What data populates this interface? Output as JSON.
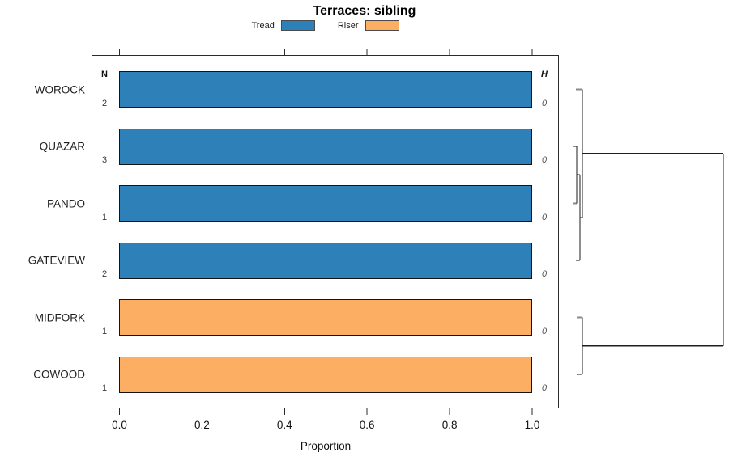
{
  "title": "Terraces: sibling",
  "legend": {
    "items": [
      {
        "label": "Tread",
        "color": "#2E80B8"
      },
      {
        "label": "Riser",
        "color": "#FCAE62"
      }
    ]
  },
  "table": {
    "n_header": "N",
    "h_header": "H"
  },
  "x_axis": {
    "label": "Proportion",
    "tick_labels": [
      "0.0",
      "0.2",
      "0.4",
      "0.6",
      "0.8",
      "1.0"
    ],
    "tick_values": [
      0,
      0.2,
      0.4,
      0.6,
      0.8,
      1.0
    ],
    "range": [
      0,
      1
    ]
  },
  "chart_data": {
    "type": "bar",
    "orientation": "horizontal",
    "title": "Terraces: sibling",
    "xlabel": "Proportion",
    "xlim": [
      0,
      1.05
    ],
    "grid": false,
    "legend_position": "top",
    "categories": [
      "WOROCK",
      "QUAZAR",
      "PANDO",
      "GATEVIEW",
      "MIDFORK",
      "COWOOD"
    ],
    "series": [
      {
        "name": "Tread",
        "color": "#2E80B8",
        "values": [
          1.0,
          1.0,
          1.0,
          1.0,
          0,
          0
        ]
      },
      {
        "name": "Riser",
        "color": "#FCAE62",
        "values": [
          0,
          0,
          0,
          0,
          1.0,
          1.0
        ]
      }
    ],
    "rows": [
      {
        "category": "WOROCK",
        "n": "2",
        "segment": "Tread",
        "proportion": 1.0,
        "h": "0"
      },
      {
        "category": "QUAZAR",
        "n": "3",
        "segment": "Tread",
        "proportion": 1.0,
        "h": "0"
      },
      {
        "category": "PANDO",
        "n": "1",
        "segment": "Tread",
        "proportion": 1.0,
        "h": "0"
      },
      {
        "category": "GATEVIEW",
        "n": "2",
        "segment": "Tread",
        "proportion": 1.0,
        "h": "0"
      },
      {
        "category": "MIDFORK",
        "n": "1",
        "segment": "Riser",
        "proportion": 1.0,
        "h": "0"
      },
      {
        "category": "COWOOD",
        "n": "1",
        "segment": "Riser",
        "proportion": 1.0,
        "h": "0"
      }
    ],
    "dendrogram": {
      "merges": [
        [
          "QUAZAR",
          "PANDO"
        ],
        [
          "QUAZAR+PANDO",
          "GATEVIEW"
        ],
        [
          "WOROCK",
          "QUAZAR+PANDO+GATEVIEW"
        ],
        [
          "MIDFORK",
          "COWOOD"
        ],
        [
          "top-cluster",
          "bottom-cluster"
        ]
      ],
      "leaf_tick_segments": [
        [
          711,
          110.5,
          719,
          110.5
        ],
        [
          708,
          181.0,
          712,
          181.0
        ],
        [
          708,
          251.5,
          712,
          251.5
        ],
        [
          711,
          322.0,
          716,
          322.0
        ],
        [
          712,
          392.5,
          719,
          392.5
        ],
        [
          712,
          463.0,
          719,
          463.0
        ]
      ],
      "line_segments": [
        [
          712,
          181.0,
          712,
          251.5
        ],
        [
          712,
          216.2,
          716,
          216.2
        ],
        [
          716,
          216.2,
          716,
          322.0
        ],
        [
          716,
          269.1,
          719,
          269.1
        ],
        [
          719,
          110.5,
          719,
          269.1
        ],
        [
          719,
          189.8,
          893,
          189.8
        ],
        [
          719,
          392.5,
          719,
          463.0
        ],
        [
          719,
          427.8,
          893,
          427.8
        ],
        [
          893,
          189.8,
          893,
          427.8
        ]
      ]
    }
  }
}
